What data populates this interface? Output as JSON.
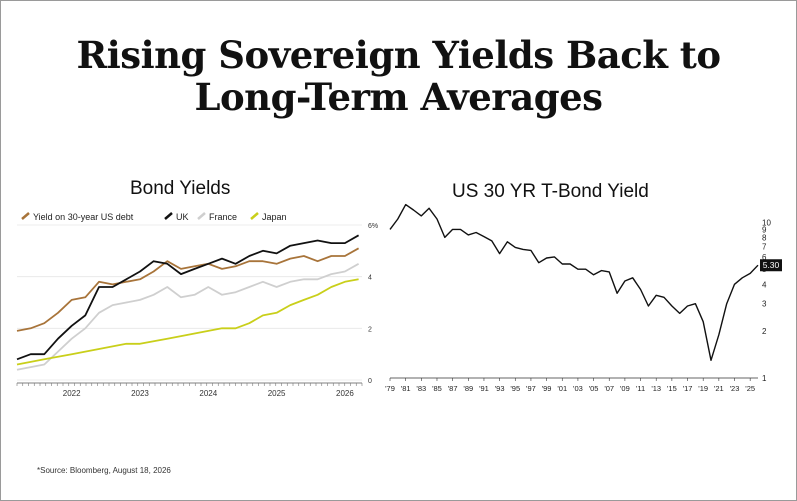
{
  "header": {
    "title_line1": "Rising Sovereign Yields Back to",
    "title_line2": "Long-Term Averages"
  },
  "footnote": "*Source: Bloomberg, August 18, 2026",
  "colors": {
    "us30": "#a8743a",
    "uk": "#111111",
    "france": "#cfcfcf",
    "japan": "#c9cf1a",
    "tbond": "#111111"
  },
  "chart_data": [
    {
      "type": "line",
      "title": "Bond Yields",
      "legend_placement": "top-left",
      "x_ticks": [
        "2022",
        "2023",
        "2024",
        "2025",
        "2026"
      ],
      "x": [
        2021.6,
        2021.8,
        2022.0,
        2022.2,
        2022.4,
        2022.6,
        2022.8,
        2023.0,
        2023.2,
        2023.4,
        2023.6,
        2023.8,
        2024.0,
        2024.2,
        2024.4,
        2024.6,
        2024.8,
        2025.0,
        2025.2,
        2025.4,
        2025.6,
        2025.8,
        2026.0,
        2026.2,
        2026.4,
        2026.6
      ],
      "y_ticks": [
        "0",
        "2",
        "4",
        "6%"
      ],
      "ylim": [
        0,
        6
      ],
      "series": [
        {
          "name": "Yield on 30-year US debt",
          "color_key": "us30",
          "values": [
            1.9,
            2.0,
            2.2,
            2.6,
            3.1,
            3.2,
            3.8,
            3.7,
            3.8,
            3.9,
            4.2,
            4.6,
            4.3,
            4.4,
            4.5,
            4.3,
            4.4,
            4.6,
            4.6,
            4.5,
            4.7,
            4.8,
            4.6,
            4.8,
            4.8,
            5.1
          ]
        },
        {
          "name": "UK",
          "color_key": "uk",
          "values": [
            0.8,
            1.0,
            1.0,
            1.6,
            2.1,
            2.5,
            3.6,
            3.6,
            3.9,
            4.2,
            4.6,
            4.5,
            4.1,
            4.3,
            4.5,
            4.7,
            4.5,
            4.8,
            5.0,
            4.9,
            5.2,
            5.3,
            5.4,
            5.3,
            5.3,
            5.6
          ]
        },
        {
          "name": "France",
          "color_key": "france",
          "values": [
            0.4,
            0.5,
            0.6,
            1.1,
            1.6,
            2.0,
            2.6,
            2.9,
            3.0,
            3.1,
            3.3,
            3.6,
            3.2,
            3.3,
            3.6,
            3.3,
            3.4,
            3.6,
            3.8,
            3.6,
            3.8,
            3.9,
            3.9,
            4.1,
            4.2,
            4.5
          ]
        },
        {
          "name": "Japan",
          "color_key": "japan",
          "values": [
            0.6,
            0.7,
            0.8,
            0.9,
            1.0,
            1.1,
            1.2,
            1.3,
            1.4,
            1.4,
            1.5,
            1.6,
            1.7,
            1.8,
            1.9,
            2.0,
            2.0,
            2.2,
            2.5,
            2.6,
            2.9,
            3.1,
            3.3,
            3.6,
            3.8,
            3.9
          ]
        }
      ]
    },
    {
      "type": "line",
      "title": "US 30 YR T-Bond Yield",
      "y_scale": "log",
      "ylim": [
        1,
        12
      ],
      "y_ticks": [
        "1",
        "2",
        "3",
        "4",
        "5",
        "6",
        "7",
        "8",
        "9",
        "10"
      ],
      "current_value_label": "5.30",
      "x_ticks": [
        "'79",
        "'81",
        "'83",
        "'85",
        "'87",
        "'89",
        "'91",
        "'93",
        "'95",
        "'97",
        "'99",
        "'01",
        "'03",
        "'05",
        "'07",
        "'09",
        "'11",
        "'13",
        "'15",
        "'17",
        "'19",
        "'21",
        "'23",
        "'25"
      ],
      "x": [
        1979,
        1980,
        1981,
        1982,
        1983,
        1984,
        1985,
        1986,
        1987,
        1988,
        1989,
        1990,
        1991,
        1992,
        1993,
        1994,
        1995,
        1996,
        1997,
        1998,
        1999,
        2000,
        2001,
        2002,
        2003,
        2004,
        2005,
        2006,
        2007,
        2008,
        2009,
        2010,
        2011,
        2012,
        2013,
        2014,
        2015,
        2016,
        2017,
        2018,
        2019,
        2020,
        2021,
        2022,
        2023,
        2024,
        2025,
        2026
      ],
      "values": [
        9.0,
        10.5,
        13.0,
        12.0,
        11.0,
        12.3,
        10.5,
        8.0,
        9.0,
        9.0,
        8.3,
        8.6,
        8.1,
        7.6,
        6.3,
        7.5,
        6.9,
        6.7,
        6.6,
        5.5,
        5.9,
        6.0,
        5.4,
        5.4,
        5.0,
        5.0,
        4.6,
        4.9,
        4.8,
        3.5,
        4.2,
        4.4,
        3.7,
        2.9,
        3.4,
        3.3,
        2.9,
        2.6,
        2.9,
        3.0,
        2.3,
        1.3,
        1.9,
        3.0,
        4.0,
        4.4,
        4.7,
        5.3
      ]
    }
  ]
}
